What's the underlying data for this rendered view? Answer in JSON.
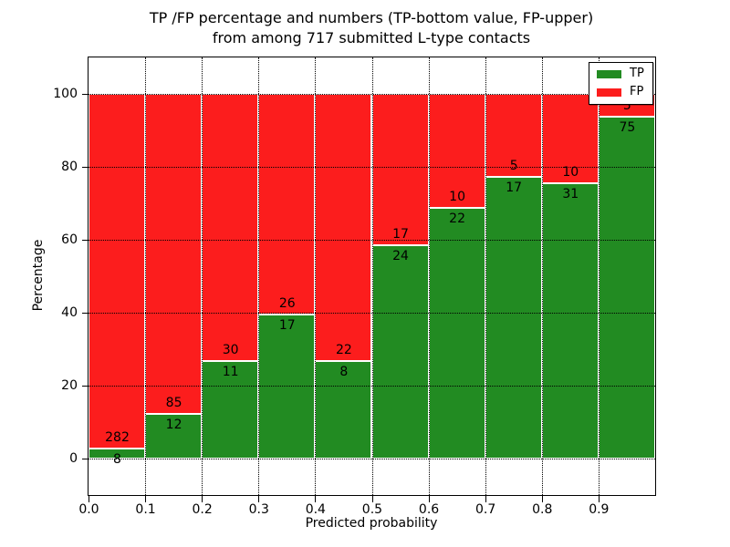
{
  "figure": {
    "title_line1": "TP /FP percentage and numbers (TP-bottom value, FP-upper)",
    "title_line2": "from among 717 submitted L-type contacts",
    "xlabel": "Predicted probability",
    "ylabel": "Percentage"
  },
  "legend": {
    "position": "upper-right",
    "items": [
      {
        "label": "TP",
        "color": "#228B22"
      },
      {
        "label": "FP",
        "color": "#FC1D1D"
      }
    ]
  },
  "chart_data": {
    "type": "bar",
    "variant": "stacked-normalized-percent",
    "title": "TP /FP percentage and numbers (TP-bottom value, FP-upper) from among 717 submitted L-type contacts",
    "xlabel": "Predicted probability",
    "ylabel": "Percentage",
    "total_submitted": 717,
    "bin_width": 0.1,
    "categories": [
      "0.0-0.1",
      "0.1-0.2",
      "0.2-0.3",
      "0.3-0.4",
      "0.4-0.5",
      "0.5-0.6",
      "0.6-0.7",
      "0.7-0.8",
      "0.8-0.9",
      "0.9-1.0"
    ],
    "x_bin_starts": [
      0.0,
      0.1,
      0.2,
      0.3,
      0.4,
      0.5,
      0.6,
      0.7,
      0.8,
      0.9
    ],
    "series": [
      {
        "name": "TP",
        "color": "#228B22",
        "counts": [
          8,
          12,
          11,
          17,
          8,
          24,
          22,
          17,
          31,
          75
        ]
      },
      {
        "name": "FP",
        "color": "#FC1D1D",
        "counts": [
          282,
          85,
          30,
          26,
          22,
          17,
          10,
          5,
          10,
          5
        ]
      }
    ],
    "tp_percent_of_bin": [
      2.8,
      12.4,
      26.8,
      39.5,
      26.7,
      58.5,
      68.8,
      77.3,
      75.6,
      93.8
    ],
    "xticks": [
      "0.0",
      "0.1",
      "0.2",
      "0.3",
      "0.4",
      "0.5",
      "0.6",
      "0.7",
      "0.8",
      "0.9"
    ],
    "yticks": [
      "0",
      "20",
      "40",
      "60",
      "80",
      "100"
    ],
    "xlim": [
      0.0,
      1.0
    ],
    "ylim": [
      -10,
      110
    ],
    "grid": "dotted black, x and y, drawn over bars",
    "legend_position": "upper right",
    "bar_edge_color": "#ffffff"
  }
}
